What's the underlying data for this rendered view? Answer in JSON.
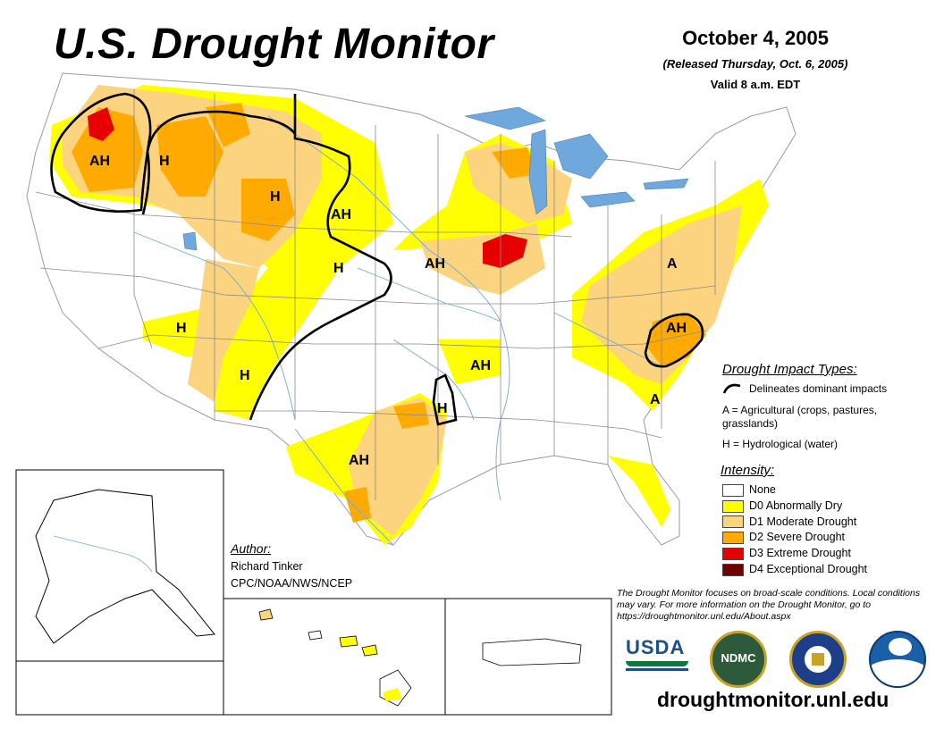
{
  "header": {
    "title": "U.S. Drought Monitor",
    "date": "October 4, 2005",
    "released": "(Released Thursday, Oct. 6, 2005)",
    "valid": "Valid 8 a.m. EDT"
  },
  "map_labels": {
    "ah_northwest": "AH",
    "h_idaho": "H",
    "h_wyoming": "H",
    "ah_dakota": "AH",
    "h_nebraska": "H",
    "ah_iowa": "AH",
    "h_utah": "H",
    "h_new_mexico": "H",
    "ah_arkansas": "AH",
    "h_oklahoma": "H",
    "ah_texas": "AH",
    "a_virginia": "A",
    "ah_carolina": "AH",
    "a_georgia": "A"
  },
  "impact_legend": {
    "title": "Drought Impact Types:",
    "delineates": "Delineates dominant impacts",
    "agricultural": "A = Agricultural (crops, pastures, grasslands)",
    "hydrological": "H = Hydrological (water)"
  },
  "intensity_legend": {
    "title": "Intensity:",
    "items": [
      {
        "label": "None",
        "color": "#ffffff"
      },
      {
        "label": "D0 Abnormally Dry",
        "color": "#ffff00"
      },
      {
        "label": "D1 Moderate Drought",
        "color": "#fcd37f"
      },
      {
        "label": "D2 Severe Drought",
        "color": "#ffaa00"
      },
      {
        "label": "D3 Extreme Drought",
        "color": "#e60000"
      },
      {
        "label": "D4 Exceptional Drought",
        "color": "#730000"
      }
    ]
  },
  "author": {
    "title": "Author:",
    "name": "Richard Tinker",
    "org": "CPC/NOAA/NWS/NCEP"
  },
  "note": "The Drought Monitor focuses on broad-scale conditions. Local conditions may vary. For more information on the Drought Monitor, go to https://droughtmonitor.unl.edu/About.aspx",
  "logos": {
    "usda": "USDA",
    "ndmc": "NDMC"
  },
  "website": "droughtmonitor.unl.edu",
  "colors": {
    "d0": "#ffff00",
    "d1": "#fcd37f",
    "d2": "#ffaa00",
    "d3": "#e60000",
    "water": "#6fa8dc",
    "boundary": "#7a7a7a"
  }
}
